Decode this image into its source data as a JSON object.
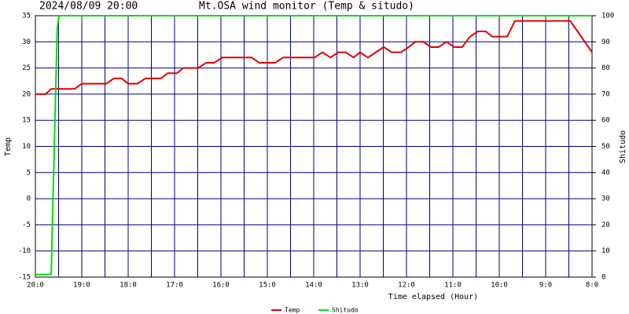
{
  "chart_data": {
    "type": "line",
    "title": "Mt.OSA wind monitor (Temp & situdo)",
    "subtitle": "2024/08/09 20:00",
    "x_label": "Time elapsed (Hour)",
    "y_label": "Temp",
    "y2_label": "Shitudo",
    "xlim": [
      0,
      12
    ],
    "xticks": [
      {
        "value": 0,
        "label": "20:0"
      },
      {
        "value": 1,
        "label": "19:0"
      },
      {
        "value": 2,
        "label": "18:0"
      },
      {
        "value": 3,
        "label": "17:0"
      },
      {
        "value": 4,
        "label": "16:0"
      },
      {
        "value": 5,
        "label": "15:0"
      },
      {
        "value": 6,
        "label": "14:0"
      },
      {
        "value": 7,
        "label": "13:0"
      },
      {
        "value": 8,
        "label": "12:0"
      },
      {
        "value": 9,
        "label": "11:0"
      },
      {
        "value": 10,
        "label": "10:0"
      },
      {
        "value": 11,
        "label": "9:0"
      },
      {
        "value": 12,
        "label": "8:0"
      }
    ],
    "ylim": [
      -15,
      35
    ],
    "yticks": [
      -15,
      -10,
      -5,
      0,
      5,
      10,
      15,
      20,
      25,
      30,
      35
    ],
    "y2lim": [
      0,
      100
    ],
    "y2ticks": [
      0,
      10,
      20,
      30,
      40,
      50,
      60,
      70,
      80,
      90,
      100
    ],
    "grid": true,
    "grid_color": "#000080",
    "legend": "bottom",
    "series": [
      {
        "name": "Temp",
        "color": "#e00000",
        "x": [
          0,
          0.22,
          0.34,
          0.85,
          1.0,
          1.53,
          1.69,
          1.86,
          2.0,
          2.2,
          2.37,
          2.71,
          2.85,
          3.05,
          3.19,
          3.51,
          3.68,
          3.85,
          4.03,
          4.66,
          4.83,
          5.17,
          5.34,
          6.02,
          6.19,
          6.36,
          6.53,
          6.69,
          6.86,
          7.0,
          7.17,
          7.34,
          7.51,
          7.68,
          7.88,
          8.05,
          8.19,
          8.36,
          8.53,
          8.69,
          8.86,
          9.03,
          9.2,
          9.37,
          9.54,
          9.71,
          9.85,
          10.17,
          10.34,
          11.53,
          12.0
        ],
        "values": [
          20,
          20,
          21,
          21,
          22,
          22,
          23,
          23,
          22,
          22,
          23,
          23,
          24,
          24,
          25,
          25,
          26,
          26,
          27,
          27,
          26,
          26,
          27,
          27,
          28,
          27,
          28,
          28,
          27,
          28,
          27,
          28,
          29,
          28,
          28,
          29,
          30,
          30,
          29,
          29,
          30,
          29,
          29,
          31,
          32,
          32,
          31,
          31,
          34,
          34,
          28
        ]
      },
      {
        "name": "Shitudo",
        "color": "#00e000",
        "axis": "y2",
        "x": [
          0,
          0.34,
          0.47,
          0.51,
          12.0
        ],
        "values": [
          1,
          1,
          95,
          100,
          100
        ]
      }
    ]
  }
}
